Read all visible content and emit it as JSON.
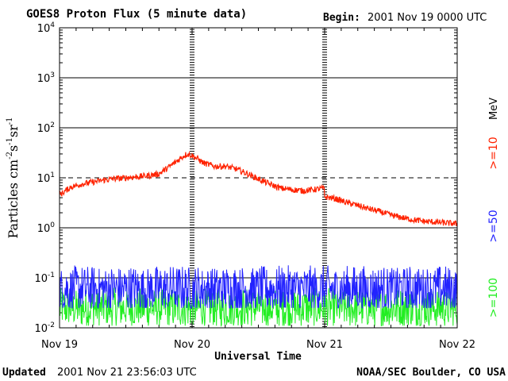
{
  "chart_data": {
    "type": "line",
    "title": "GOES8 Proton Flux (5 minute data)",
    "begin_label": "Begin:",
    "begin_value": "2001 Nov 19 0000 UTC",
    "xlabel": "Universal Time",
    "ylabel": "Particles cm",
    "ylabel_parts": {
      "cm_exp": "-2",
      "s": "s",
      "s_exp": "-1",
      "sr": "sr",
      "sr_exp": "-1"
    },
    "y_scale": "log",
    "ylim": [
      0.01,
      10000
    ],
    "y_ticks": [
      {
        "base": "10",
        "exp": "-2"
      },
      {
        "base": "10",
        "exp": "-1"
      },
      {
        "base": "10",
        "exp": "0"
      },
      {
        "base": "10",
        "exp": "1"
      },
      {
        "base": "10",
        "exp": "2"
      },
      {
        "base": "10",
        "exp": "3"
      },
      {
        "base": "10",
        "exp": "4"
      }
    ],
    "x_tick_labels": [
      "Nov 19",
      "Nov 20",
      "Nov 21",
      "Nov 22"
    ],
    "xlim_hours": [
      0,
      72
    ],
    "unit_label": "MeV",
    "series": [
      {
        "name": ">=10",
        "color": "#ff2200",
        "x_hours": [
          0,
          2,
          4,
          6,
          8,
          10,
          12,
          14,
          16,
          18,
          20,
          22,
          23,
          24,
          25,
          26,
          28,
          30,
          32,
          34,
          36,
          38,
          40,
          42,
          44,
          46,
          47.9,
          48,
          50,
          52,
          54,
          56,
          58,
          60,
          62,
          64,
          66,
          68,
          70,
          72
        ],
        "values": [
          4.5,
          6.5,
          7.5,
          8.2,
          9.0,
          9.6,
          10.0,
          10.5,
          11.0,
          12.0,
          17.0,
          25.0,
          30.0,
          28.0,
          24.0,
          20.0,
          17.0,
          17.0,
          15.0,
          12.0,
          9.5,
          7.5,
          6.2,
          5.8,
          5.5,
          5.8,
          6.2,
          4.2,
          3.8,
          3.2,
          2.8,
          2.4,
          2.1,
          1.8,
          1.6,
          1.45,
          1.35,
          1.3,
          1.25,
          1.2
        ]
      },
      {
        "name": ">=50",
        "color": "#2222ff",
        "x_hours": [
          0,
          72
        ],
        "values": [
          0.06,
          0.06
        ],
        "noise_range": [
          0.025,
          0.22
        ]
      },
      {
        "name": ">=100",
        "color": "#22ee22",
        "x_hours": [
          0,
          72
        ],
        "values": [
          0.025,
          0.025
        ],
        "noise_range": [
          0.011,
          0.07
        ]
      }
    ]
  },
  "footer": {
    "updated_label": "Updated",
    "updated_value": "2001 Nov 21 23:56:03 UTC",
    "credit": "NOAA/SEC Boulder, CO USA"
  }
}
